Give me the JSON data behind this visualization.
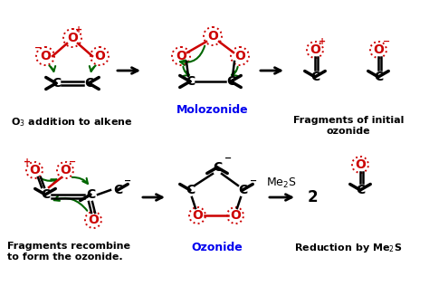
{
  "bg_color": "#ffffff",
  "red": "#cc0000",
  "green": "#006600",
  "blue": "#0000ee",
  "black": "#000000",
  "label1": "O$_3$ addition to alkene",
  "label2": "Molozonide",
  "label3": "Fragments of initial\nozonide",
  "label4": "Fragments recombine\nto form the ozonide.",
  "label5": "Ozonide",
  "label6": "Reduction by Me$_2$S"
}
